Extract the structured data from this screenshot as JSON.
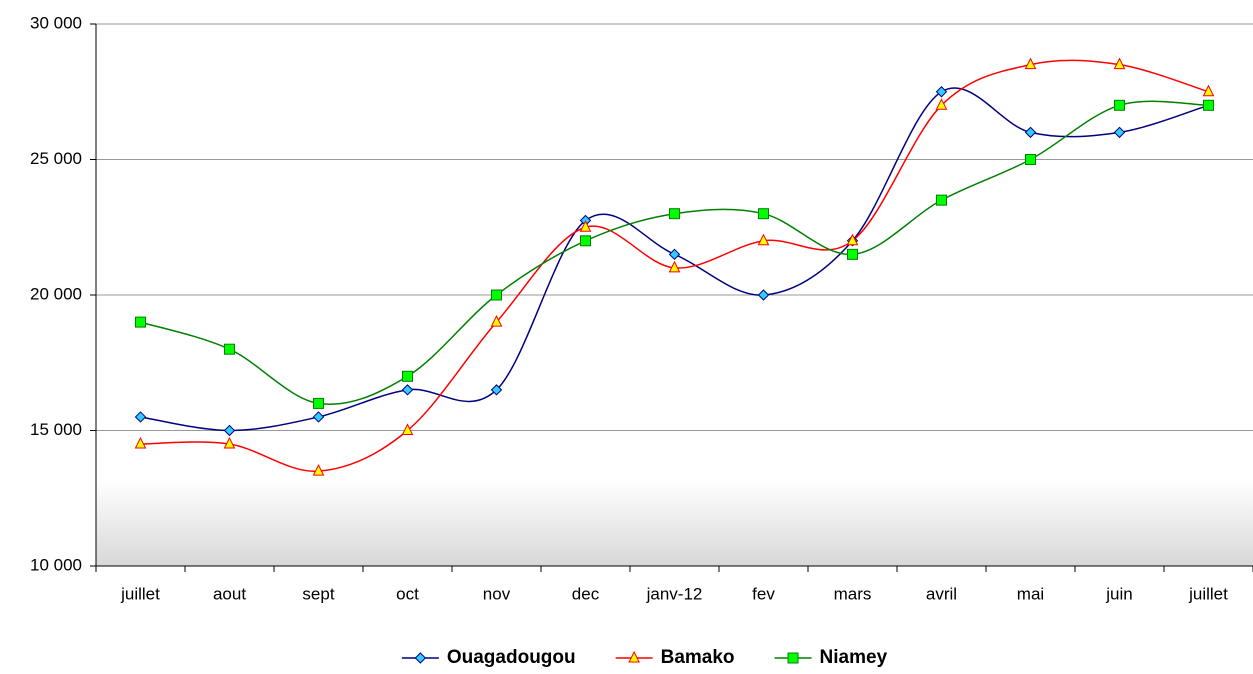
{
  "chart_data": {
    "type": "line",
    "categories": [
      "juillet",
      "aout",
      "sept",
      "oct",
      "nov",
      "dec",
      "janv-12",
      "fev",
      "mars",
      "avril",
      "mai",
      "juin",
      "juillet"
    ],
    "series": [
      {
        "name": "Ouagadougou",
        "color": "#000080",
        "marker": "diamond",
        "marker_color": "#33ccff",
        "values": [
          15500,
          15000,
          15500,
          16500,
          16500,
          22750,
          21500,
          20000,
          22000,
          27500,
          26000,
          26000,
          27000
        ]
      },
      {
        "name": "Bamako",
        "color": "#ff0000",
        "marker": "triangle",
        "marker_color": "#ffff00",
        "values": [
          14500,
          14500,
          13500,
          15000,
          19000,
          22500,
          21000,
          22000,
          22000,
          27000,
          28500,
          28500,
          27500
        ]
      },
      {
        "name": "Niamey",
        "color": "#008000",
        "marker": "square",
        "marker_color": "#00ff00",
        "values": [
          19000,
          18000,
          16000,
          17000,
          20000,
          22000,
          23000,
          23000,
          21500,
          23500,
          25000,
          27000,
          27000
        ]
      }
    ],
    "ylim": [
      10000,
      30000
    ],
    "yticks": [
      {
        "value": 10000,
        "label": "10 000"
      },
      {
        "value": 15000,
        "label": "15 000"
      },
      {
        "value": 20000,
        "label": "20 000"
      },
      {
        "value": 25000,
        "label": "25 000"
      },
      {
        "value": 30000,
        "label": "30 000"
      }
    ],
    "grid": true,
    "smooth": true,
    "legend": "bottom"
  }
}
